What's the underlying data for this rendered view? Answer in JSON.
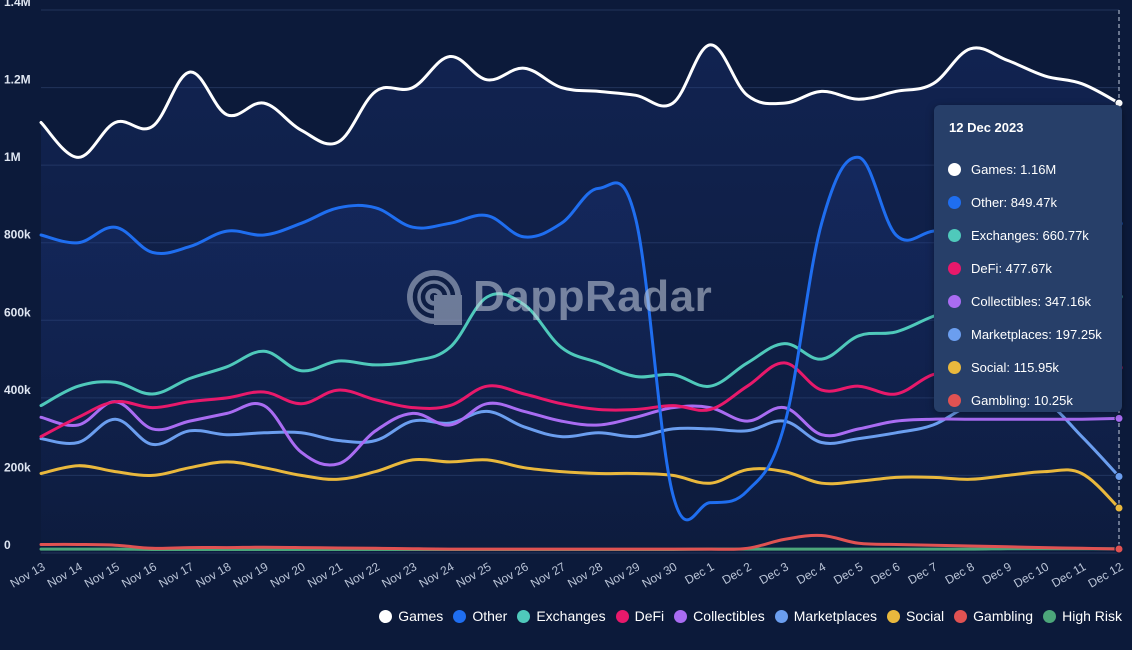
{
  "watermark": {
    "brand": "DappRadar"
  },
  "chart_data": {
    "type": "line",
    "title": "",
    "xlabel": "",
    "ylabel": "",
    "ylim": [
      0,
      1400000
    ],
    "y_ticks": [
      {
        "value": 0,
        "label": "0"
      },
      {
        "value": 200000,
        "label": "200k"
      },
      {
        "value": 400000,
        "label": "400k"
      },
      {
        "value": 600000,
        "label": "600k"
      },
      {
        "value": 800000,
        "label": "800k"
      },
      {
        "value": 1000000,
        "label": "1M"
      },
      {
        "value": 1200000,
        "label": "1.2M"
      },
      {
        "value": 1400000,
        "label": "1.4M"
      }
    ],
    "grid": true,
    "legend_position": "bottom-right",
    "categories": [
      "Nov 13",
      "Nov 14",
      "Nov 15",
      "Nov 16",
      "Nov 17",
      "Nov 18",
      "Nov 19",
      "Nov 20",
      "Nov 21",
      "Nov 22",
      "Nov 23",
      "Nov 24",
      "Nov 25",
      "Nov 26",
      "Nov 27",
      "Nov 28",
      "Nov 29",
      "Nov 30",
      "Dec 1",
      "Dec 2",
      "Dec 3",
      "Dec 4",
      "Dec 5",
      "Dec 6",
      "Dec 7",
      "Dec 8",
      "Dec 9",
      "Dec 10",
      "Dec 11",
      "Dec 12"
    ],
    "series": [
      {
        "name": "Games",
        "color": "#ffffff",
        "values": [
          1110000,
          1020000,
          1110000,
          1100000,
          1240000,
          1130000,
          1160000,
          1090000,
          1060000,
          1190000,
          1200000,
          1280000,
          1220000,
          1250000,
          1200000,
          1190000,
          1180000,
          1160000,
          1310000,
          1180000,
          1160000,
          1190000,
          1170000,
          1190000,
          1210000,
          1300000,
          1270000,
          1230000,
          1210000,
          1160000
        ]
      },
      {
        "name": "Other",
        "color": "#1f6ef0",
        "values": [
          820000,
          800000,
          840000,
          775000,
          790000,
          830000,
          820000,
          850000,
          890000,
          890000,
          840000,
          850000,
          870000,
          815000,
          850000,
          940000,
          860000,
          150000,
          130000,
          160000,
          330000,
          850000,
          1020000,
          820000,
          830000,
          840000,
          850000,
          850000,
          850000,
          849470
        ]
      },
      {
        "name": "Exchanges",
        "color": "#4fc9bb",
        "values": [
          380000,
          430000,
          440000,
          410000,
          450000,
          480000,
          520000,
          470000,
          495000,
          485000,
          495000,
          530000,
          660000,
          640000,
          530000,
          490000,
          455000,
          460000,
          430000,
          490000,
          540000,
          500000,
          560000,
          570000,
          610000,
          640000,
          660000,
          660000,
          660000,
          660770
        ]
      },
      {
        "name": "DeFi",
        "color": "#e8196b",
        "values": [
          300000,
          350000,
          390000,
          375000,
          390000,
          400000,
          415000,
          385000,
          420000,
          395000,
          375000,
          380000,
          430000,
          410000,
          385000,
          370000,
          370000,
          380000,
          370000,
          430000,
          490000,
          420000,
          430000,
          410000,
          460000,
          470000,
          475000,
          475000,
          475000,
          477670
        ]
      },
      {
        "name": "Collectibles",
        "color": "#a96cf2",
        "values": [
          350000,
          330000,
          390000,
          320000,
          340000,
          360000,
          380000,
          260000,
          230000,
          315000,
          360000,
          330000,
          385000,
          365000,
          340000,
          330000,
          350000,
          375000,
          375000,
          340000,
          375000,
          305000,
          320000,
          340000,
          345000,
          345000,
          345000,
          345000,
          345000,
          347160
        ]
      },
      {
        "name": "Marketplaces",
        "color": "#6b9eef",
        "values": [
          295000,
          285000,
          345000,
          280000,
          315000,
          305000,
          310000,
          310000,
          290000,
          290000,
          340000,
          335000,
          365000,
          325000,
          300000,
          310000,
          300000,
          320000,
          320000,
          315000,
          340000,
          285000,
          295000,
          310000,
          330000,
          380000,
          390000,
          390000,
          300000,
          197250
        ]
      },
      {
        "name": "Social",
        "color": "#e9b83d",
        "values": [
          205000,
          225000,
          210000,
          200000,
          220000,
          235000,
          220000,
          200000,
          190000,
          210000,
          240000,
          235000,
          240000,
          220000,
          210000,
          205000,
          205000,
          200000,
          180000,
          215000,
          210000,
          180000,
          185000,
          195000,
          195000,
          190000,
          200000,
          210000,
          205000,
          115950
        ]
      },
      {
        "name": "Gambling",
        "color": "#e05252",
        "values": [
          22000,
          22000,
          20000,
          12000,
          14000,
          14000,
          15000,
          14000,
          13000,
          12000,
          11000,
          10000,
          10000,
          10000,
          10000,
          10000,
          10000,
          10000,
          10000,
          12000,
          35000,
          45000,
          25000,
          22000,
          20000,
          18000,
          16000,
          14000,
          12000,
          10250
        ]
      },
      {
        "name": "High Risk",
        "color": "#4ca67a",
        "values": [
          10000,
          10000,
          10000,
          9000,
          9000,
          9000,
          9000,
          9000,
          9000,
          9000,
          9000,
          9000,
          9000,
          9000,
          9000,
          9000,
          9000,
          9000,
          10000,
          10000,
          10000,
          10000,
          10000,
          10000,
          10000,
          10000,
          11000,
          11000,
          11000,
          11000
        ]
      }
    ]
  },
  "tooltip": {
    "date": "12 Dec 2023",
    "rows": [
      {
        "text": "Games: 1.16M",
        "color": "#ffffff"
      },
      {
        "text": "Other: 849.47k",
        "color": "#1f6ef0"
      },
      {
        "text": "Exchanges: 660.77k",
        "color": "#4fc9bb"
      },
      {
        "text": "DeFi: 477.67k",
        "color": "#e8196b"
      },
      {
        "text": "Collectibles: 347.16k",
        "color": "#a96cf2"
      },
      {
        "text": "Marketplaces: 197.25k",
        "color": "#6b9eef"
      },
      {
        "text": "Social: 115.95k",
        "color": "#e9b83d"
      },
      {
        "text": "Gambling: 10.25k",
        "color": "#e05252"
      }
    ]
  }
}
